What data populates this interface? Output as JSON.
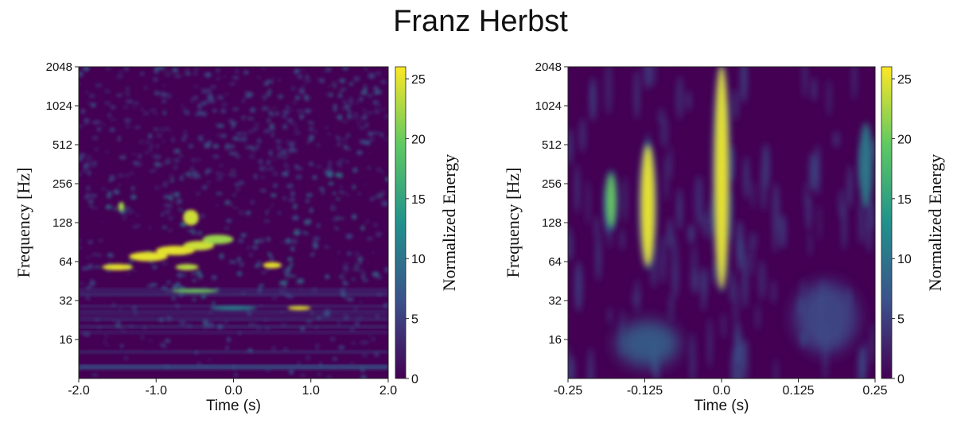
{
  "title": "Franz Herbst",
  "chart_data": [
    {
      "type": "heatmap",
      "title": "",
      "xlabel": "Time (s)",
      "ylabel": "Frequency [Hz]",
      "colorbar_label": "Normalized Energy",
      "xlim": [
        -2.0,
        2.0
      ],
      "ylim": [
        8,
        2048
      ],
      "yscale": "log2",
      "clim": [
        0,
        26
      ],
      "colormap": "viridis",
      "xticks": [
        -2.0,
        -1.0,
        0.0,
        1.0,
        2.0
      ],
      "xtick_labels": [
        "-2.0",
        "-1.0",
        "0.0",
        "1.0",
        "2.0"
      ],
      "yticks": [
        16,
        32,
        64,
        128,
        256,
        512,
        1024,
        2048
      ],
      "ytick_labels": [
        "16",
        "32",
        "64",
        "128",
        "256",
        "512",
        "1024",
        "2048"
      ],
      "cticks": [
        0,
        5,
        10,
        15,
        20,
        25
      ],
      "ctick_labels": [
        "0",
        "5",
        "10",
        "15",
        "20",
        "25"
      ],
      "features": [
        {
          "t": -1.1,
          "f": 70,
          "dt": 0.25,
          "df": 0.12,
          "energy": 25
        },
        {
          "t": -0.75,
          "f": 78,
          "dt": 0.25,
          "df": 0.12,
          "energy": 25
        },
        {
          "t": -0.45,
          "f": 85,
          "dt": 0.2,
          "df": 0.12,
          "energy": 24
        },
        {
          "t": -0.2,
          "f": 95,
          "dt": 0.2,
          "df": 0.12,
          "energy": 22
        },
        {
          "t": -1.5,
          "f": 58,
          "dt": 0.2,
          "df": 0.08,
          "energy": 25
        },
        {
          "t": -0.6,
          "f": 58,
          "dt": 0.15,
          "df": 0.08,
          "energy": 23
        },
        {
          "t": 0.5,
          "f": 60,
          "dt": 0.12,
          "df": 0.08,
          "energy": 25
        },
        {
          "t": -0.55,
          "f": 140,
          "dt": 0.1,
          "df": 0.2,
          "energy": 24
        },
        {
          "t": -1.45,
          "f": 170,
          "dt": 0.04,
          "df": 0.12,
          "energy": 22
        },
        {
          "t": -0.5,
          "f": 38,
          "dt": 0.3,
          "df": 0.05,
          "energy": 20
        },
        {
          "t": 0.85,
          "f": 28,
          "dt": 0.15,
          "df": 0.05,
          "energy": 25
        },
        {
          "t": 0.0,
          "f": 28,
          "dt": 0.3,
          "df": 0.05,
          "energy": 12
        }
      ]
    },
    {
      "type": "heatmap",
      "title": "",
      "xlabel": "Time (s)",
      "ylabel": "Frequency [Hz]",
      "colorbar_label": "Normalized Energy",
      "xlim": [
        -0.25,
        0.25
      ],
      "ylim": [
        8,
        2048
      ],
      "yscale": "log2",
      "clim": [
        0,
        26
      ],
      "colormap": "viridis",
      "xticks": [
        -0.25,
        -0.125,
        0.0,
        0.125,
        0.25
      ],
      "xtick_labels": [
        "-0.25",
        "-0.125",
        "0.0",
        "0.125",
        "0.25"
      ],
      "yticks": [
        16,
        32,
        64,
        128,
        256,
        512,
        1024,
        2048
      ],
      "ytick_labels": [
        "16",
        "32",
        "64",
        "128",
        "256",
        "512",
        "1024",
        "2048"
      ],
      "cticks": [
        0,
        5,
        10,
        15,
        20,
        25
      ],
      "ctick_labels": [
        "0",
        "5",
        "10",
        "15",
        "20",
        "25"
      ],
      "features": [
        {
          "t": 0.0,
          "f_low": 40,
          "f_high": 2048,
          "energy": 25
        },
        {
          "t": -0.12,
          "f_low": 60,
          "f_high": 500,
          "energy": 25
        },
        {
          "t": -0.18,
          "f_low": 120,
          "f_high": 300,
          "energy": 20
        },
        {
          "t": 0.235,
          "f_low": 180,
          "f_high": 700,
          "energy": 10
        },
        {
          "t": -0.12,
          "f_low": 11,
          "f_high": 20,
          "energy": 8
        },
        {
          "t": 0.17,
          "f_low": 14,
          "f_high": 40,
          "energy": 6
        }
      ]
    }
  ]
}
